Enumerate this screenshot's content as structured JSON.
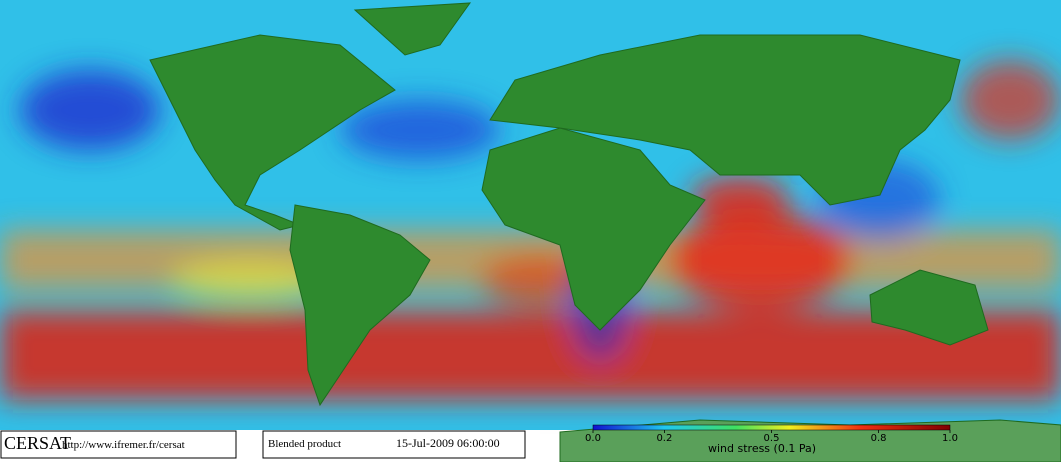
{
  "footer": {
    "logo": "CERSAT",
    "url": "http://www.ifremer.fr/cersat",
    "product": "Blended product",
    "datetime": "15-Jul-2009 06:00:00"
  },
  "colorbar": {
    "label": "wind stress (0.1 Pa)",
    "lim": [
      0,
      1
    ],
    "ticks": [
      {
        "value": 0,
        "label": "0.0"
      },
      0.2,
      0.5,
      0.8,
      {
        "value": 1,
        "label": "1.0"
      }
    ]
  }
}
